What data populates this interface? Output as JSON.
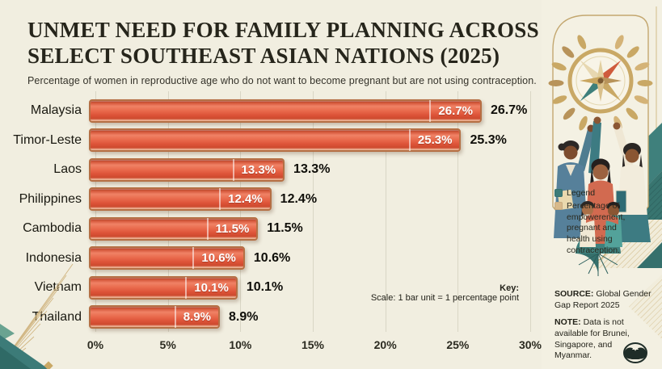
{
  "title": "UNMET NEED FOR FAMILY PLANNING ACROSS SELECT SOUTHEAST ASIAN NATIONS (2025)",
  "subtitle": "Percentage of women in reproductive age who do not want to become pregnant but are not using contraception.",
  "chart_data": {
    "type": "bar",
    "orientation": "horizontal",
    "title": "Unmet need for family planning across select Southeast Asian nations (2025)",
    "categories": [
      "Malaysia",
      "Timor-Leste",
      "Laos",
      "Philippines",
      "Cambodia",
      "Indonesia",
      "Vietnam",
      "Thailand"
    ],
    "values": [
      26.7,
      25.3,
      13.3,
      12.4,
      11.5,
      10.6,
      10.1,
      8.9
    ],
    "value_labels": [
      "26.7%",
      "25.3%",
      "13.3%",
      "12.4%",
      "11.5%",
      "10.6%",
      "10.1%",
      "8.9%"
    ],
    "xlabel": "",
    "ylabel": "",
    "xlim": [
      0,
      30
    ],
    "x_ticks": [
      "0%",
      "5%",
      "10%",
      "15%",
      "20%",
      "25%",
      "30%"
    ],
    "x_tick_values": [
      0,
      5,
      10,
      15,
      20,
      25,
      30
    ],
    "grid": "vertical",
    "bar_color": "#e2613f",
    "bar_border_color": "#b56f44",
    "key_title": "Key:",
    "key_text": "Scale: 1 bar unit = 1 percentage point"
  },
  "panel": {
    "legend": {
      "title": "Legend",
      "item_text": "Percentage of empowerenent, pregnant and health using contraception.",
      "swatch_teal": "#3c7b78",
      "swatch_tan": "#d8b98a"
    },
    "source": {
      "label": "SOURCE:",
      "text": " Global Gender Gap Report 2025"
    },
    "note": {
      "label": "NOTE:",
      "text": " Data is not available for Brunei, Singapore, and Myanmar."
    }
  },
  "colors": {
    "background": "#f1eee0",
    "teal": "#3c7b78",
    "gold": "#c9a865",
    "coral": "#cf5b3d",
    "text": "#26251b"
  }
}
